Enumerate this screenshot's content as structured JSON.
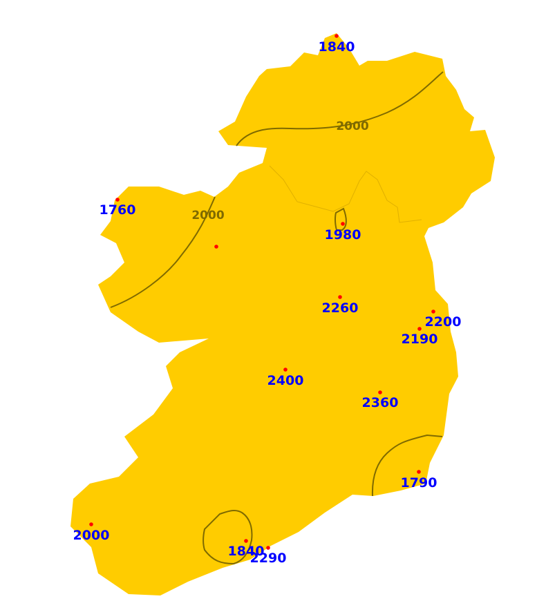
{
  "map": {
    "land_color": "#ffcc00",
    "isoline_color": "#7f6a00",
    "station_color": "#ff0000",
    "label_color": "#0000ff",
    "isoline_labels": [
      {
        "id": "north",
        "text": "2000"
      },
      {
        "id": "west",
        "text": "2000"
      }
    ],
    "stations": [
      {
        "text": "1840"
      },
      {
        "text": "1760"
      },
      {
        "text": ""
      },
      {
        "text": "1980"
      },
      {
        "text": "2260"
      },
      {
        "text": "2200"
      },
      {
        "text": "2190"
      },
      {
        "text": "2400"
      },
      {
        "text": "2360"
      },
      {
        "text": "1790"
      },
      {
        "text": "2000"
      },
      {
        "text": "1840"
      },
      {
        "text": "2290"
      }
    ]
  }
}
